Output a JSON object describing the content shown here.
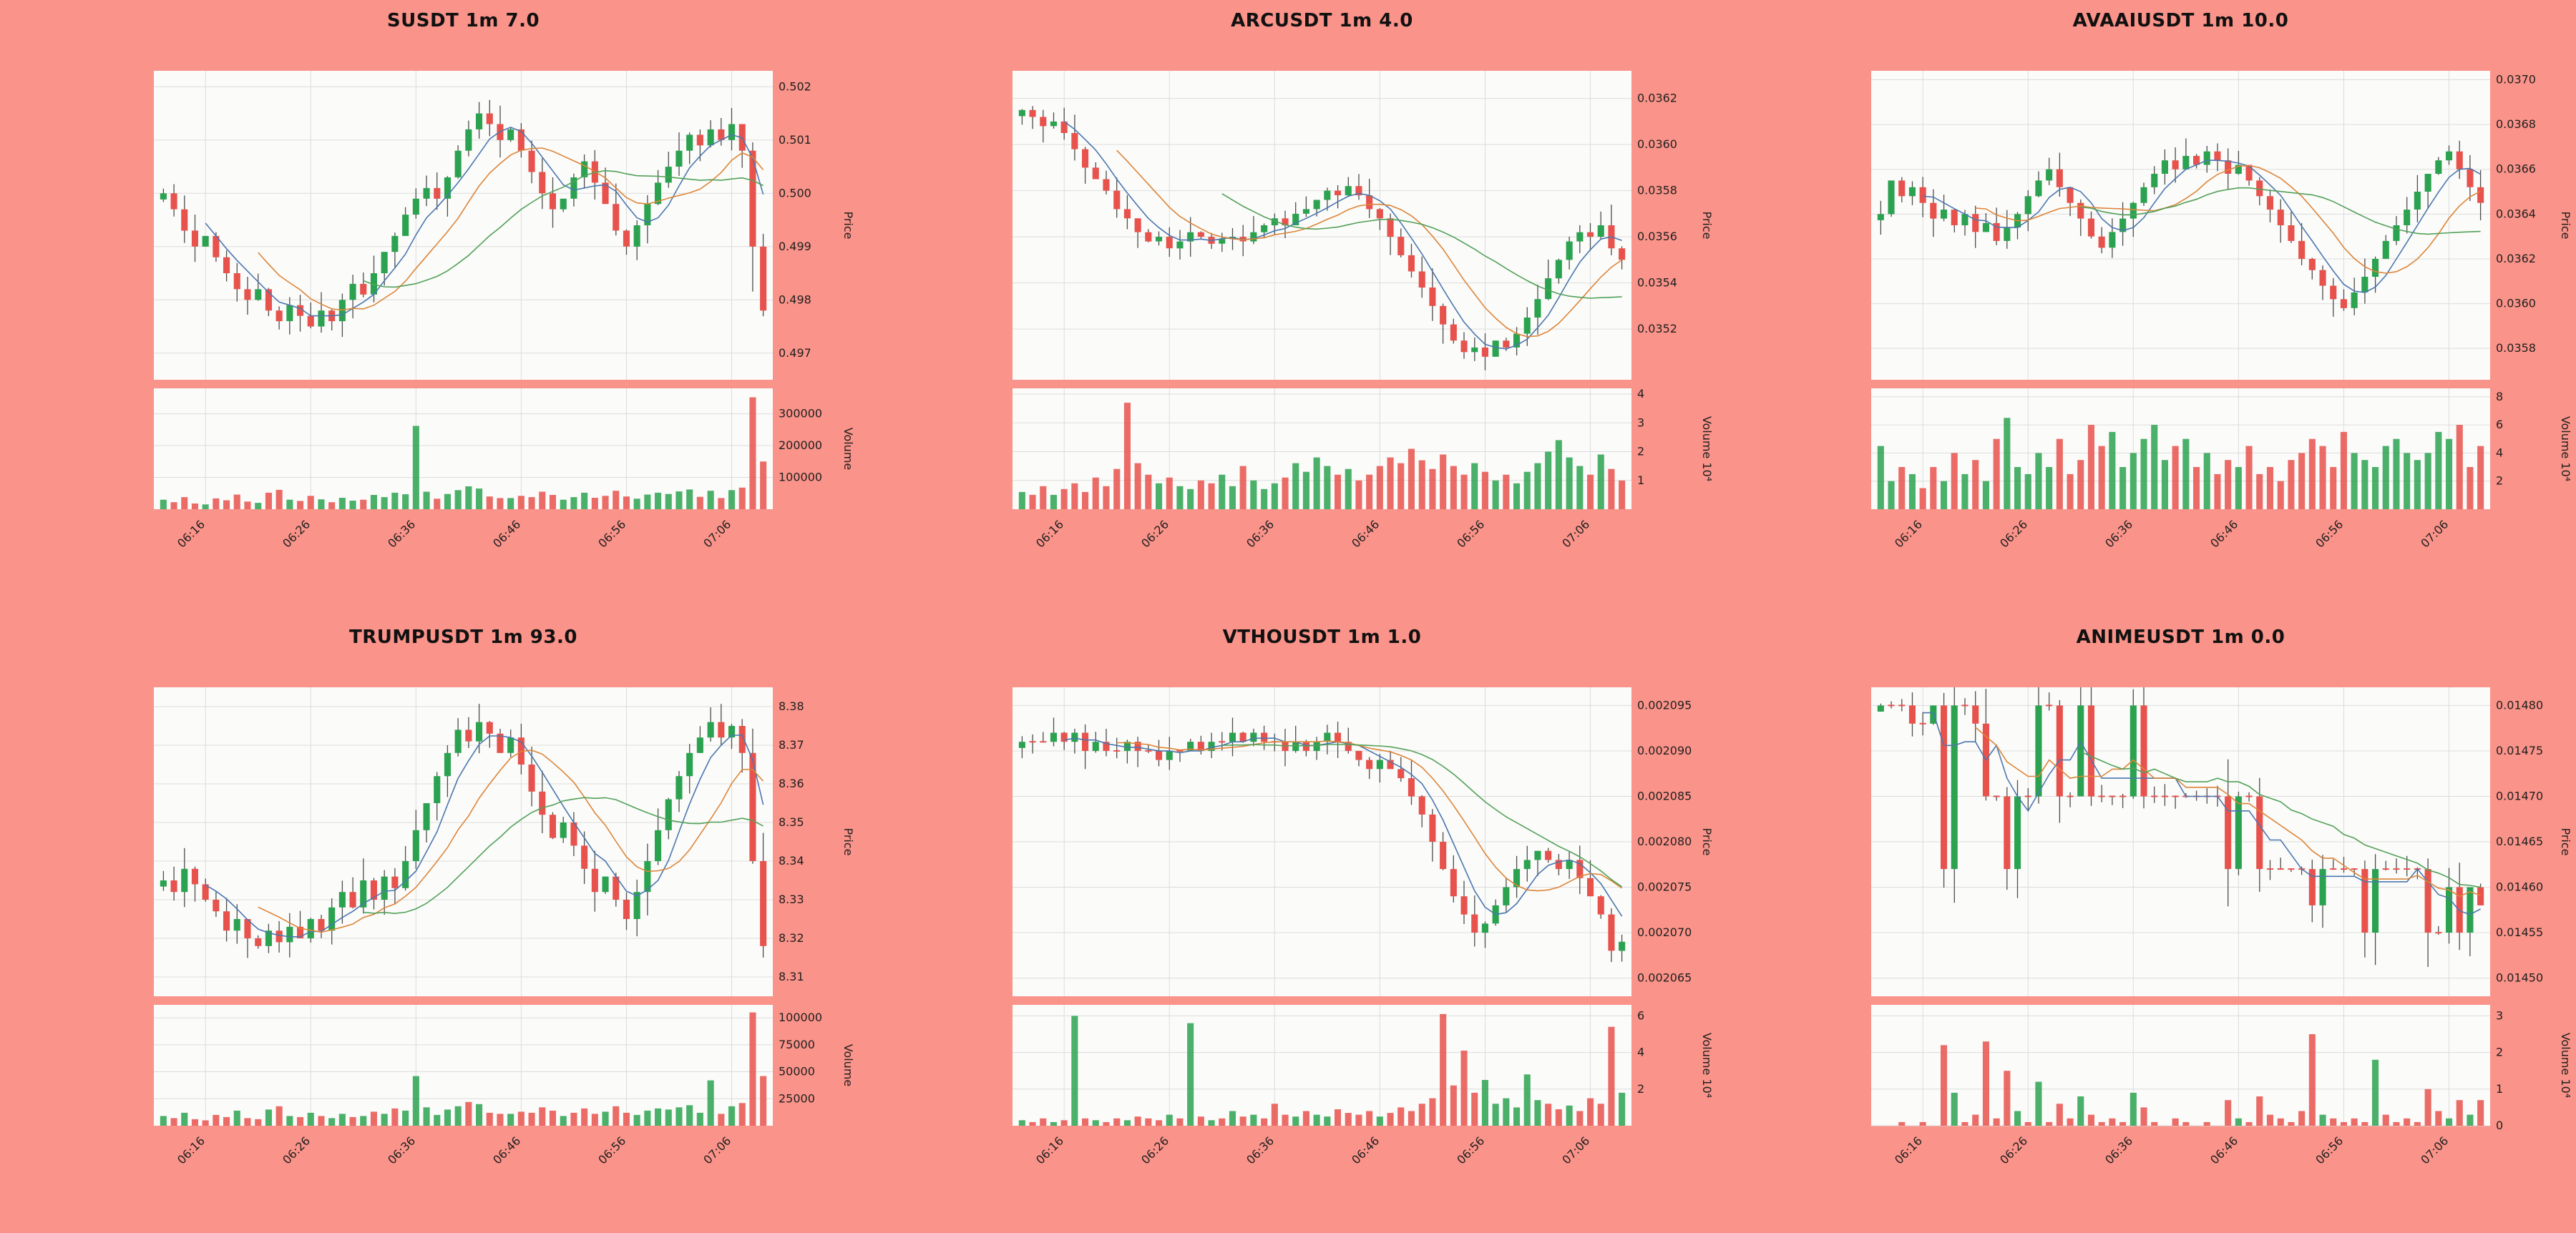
{
  "page": {
    "background_color": "#fa9389",
    "grid": {
      "rows": 2,
      "cols": 3
    }
  },
  "style": {
    "up_color": "#2ba24f",
    "down_color": "#e8524c",
    "wick_color": "#4d4d4d",
    "ma_colors": [
      "#4b77ae",
      "#dd8538",
      "#53a158"
    ],
    "ma_windows": [
      5,
      10,
      20
    ],
    "axes_bg": "#fbfbfa",
    "grid_color": "#dcdcdc",
    "text_color": "#1f1f1f"
  },
  "chart_data": [
    {
      "type": "candlestick+volume",
      "title": "SUSDT 1m 7.0",
      "symbol": "SUSDT",
      "interval": "1m",
      "score": "7.0",
      "price_axis_label": "Price",
      "volume_axis_label": "Volume",
      "x_tick_labels": [
        "06:16",
        "06:26",
        "06:36",
        "06:46",
        "06:56",
        "07:06"
      ],
      "x_tick_indices": [
        4,
        14,
        24,
        34,
        44,
        54
      ],
      "price_ticks": {
        "values": [
          0.497,
          0.498,
          0.499,
          0.5,
          0.501,
          0.502
        ],
        "labels": [
          "0.497",
          "0.498",
          "0.499",
          "0.500",
          "0.501",
          "0.502"
        ]
      },
      "price_ylim": [
        0.4965,
        0.5023
      ],
      "volume_ticks": {
        "values": [
          100000,
          200000,
          300000
        ],
        "labels": [
          "100000",
          "200000",
          "300000"
        ]
      },
      "volume_ylim": [
        0,
        380000
      ],
      "closes": [
        0.5,
        0.4997,
        0.4993,
        0.499,
        0.4992,
        0.4988,
        0.4985,
        0.4982,
        0.498,
        0.4982,
        0.4978,
        0.4976,
        0.4979,
        0.4977,
        0.4975,
        0.4978,
        0.4976,
        0.498,
        0.4983,
        0.4981,
        0.4985,
        0.4989,
        0.4992,
        0.4996,
        0.4999,
        0.5001,
        0.4999,
        0.5003,
        0.5008,
        0.5012,
        0.5015,
        0.5013,
        0.501,
        0.5012,
        0.5008,
        0.5004,
        0.5,
        0.4997,
        0.4999,
        0.5003,
        0.5006,
        0.5002,
        0.4998,
        0.4993,
        0.499,
        0.4994,
        0.4998,
        0.5002,
        0.5005,
        0.5008,
        0.5011,
        0.5009,
        0.5012,
        0.501,
        0.5013,
        0.5008,
        0.499,
        0.4978
      ],
      "volumes": [
        30000,
        22000,
        38000,
        18000,
        15000,
        34000,
        28000,
        46000,
        24000,
        20000,
        52000,
        61000,
        30000,
        26000,
        42000,
        31000,
        22000,
        36000,
        27000,
        30000,
        45000,
        38000,
        52000,
        47000,
        262000,
        55000,
        33000,
        48000,
        60000,
        72000,
        65000,
        40000,
        35000,
        35000,
        42000,
        38000,
        55000,
        45000,
        30000,
        38000,
        52000,
        36000,
        42000,
        58000,
        40000,
        33000,
        46000,
        52000,
        48000,
        56000,
        62000,
        39000,
        58000,
        35000,
        60000,
        68000,
        352000,
        150000
      ]
    },
    {
      "type": "candlestick+volume",
      "title": "ARCUSDT 1m 4.0",
      "symbol": "ARCUSDT",
      "interval": "1m",
      "score": "4.0",
      "price_axis_label": "Price",
      "volume_axis_label": "Volume 10⁴",
      "x_tick_labels": [
        "06:16",
        "06:26",
        "06:36",
        "06:46",
        "06:56",
        "07:06"
      ],
      "x_tick_indices": [
        4,
        14,
        24,
        34,
        44,
        54
      ],
      "price_ticks": {
        "values": [
          0.0352,
          0.0354,
          0.0356,
          0.0358,
          0.036,
          0.0362
        ],
        "labels": [
          "0.0352",
          "0.0354",
          "0.0356",
          "0.0358",
          "0.0360",
          "0.0362"
        ]
      },
      "price_ylim": [
        0.03498,
        0.03632
      ],
      "volume_ticks": {
        "values": [
          10000,
          20000,
          30000,
          40000
        ],
        "labels": [
          "1",
          "2",
          "3",
          "4"
        ]
      },
      "volume_ylim": [
        0,
        42000
      ],
      "closes": [
        0.03615,
        0.03612,
        0.03608,
        0.0361,
        0.03605,
        0.03598,
        0.0359,
        0.03585,
        0.0358,
        0.03572,
        0.03568,
        0.03562,
        0.03558,
        0.0356,
        0.03555,
        0.03558,
        0.03562,
        0.0356,
        0.03557,
        0.03559,
        0.0356,
        0.03558,
        0.03562,
        0.03565,
        0.03568,
        0.03565,
        0.0357,
        0.03572,
        0.03576,
        0.0358,
        0.03578,
        0.03582,
        0.03578,
        0.03572,
        0.03568,
        0.0356,
        0.03552,
        0.03545,
        0.03538,
        0.0353,
        0.03522,
        0.03515,
        0.0351,
        0.03512,
        0.03508,
        0.03515,
        0.03512,
        0.03518,
        0.03525,
        0.03533,
        0.03542,
        0.0355,
        0.03558,
        0.03562,
        0.0356,
        0.03565,
        0.03555,
        0.0355
      ],
      "volumes": [
        6000,
        5000,
        8000,
        5000,
        7000,
        9000,
        6000,
        11000,
        8000,
        14000,
        37000,
        16000,
        12000,
        9000,
        11000,
        8000,
        7000,
        10000,
        9000,
        12000,
        8000,
        15000,
        10000,
        7000,
        9000,
        11000,
        16000,
        13000,
        18000,
        15000,
        12000,
        14000,
        10000,
        12000,
        15000,
        18000,
        16000,
        21000,
        17000,
        14000,
        19000,
        15000,
        12000,
        16000,
        13000,
        10000,
        12000,
        9000,
        13000,
        16000,
        20000,
        24000,
        18000,
        15000,
        12000,
        19000,
        14000,
        10000
      ]
    },
    {
      "type": "candlestick+volume",
      "title": "AVAAIUSDT 1m 10.0",
      "symbol": "AVAAIUSDT",
      "interval": "1m",
      "score": "10.0",
      "price_axis_label": "Price",
      "volume_axis_label": "Volume 10⁴",
      "x_tick_labels": [
        "06:16",
        "06:26",
        "06:36",
        "06:46",
        "06:56",
        "07:06"
      ],
      "x_tick_indices": [
        4,
        14,
        24,
        34,
        44,
        54
      ],
      "price_ticks": {
        "values": [
          0.0358,
          0.036,
          0.0362,
          0.0364,
          0.0366,
          0.0368,
          0.037
        ],
        "labels": [
          "0.0358",
          "0.0360",
          "0.0362",
          "0.0364",
          "0.0366",
          "0.0368",
          "0.0370"
        ]
      },
      "price_ylim": [
        0.03566,
        0.03704
      ],
      "volume_ticks": {
        "values": [
          20000,
          40000,
          60000,
          80000
        ],
        "labels": [
          "2",
          "4",
          "6",
          "8"
        ]
      },
      "volume_ylim": [
        0,
        86000
      ],
      "closes": [
        0.0364,
        0.03655,
        0.03648,
        0.03652,
        0.03645,
        0.03638,
        0.03642,
        0.03635,
        0.0364,
        0.03632,
        0.03636,
        0.03628,
        0.03634,
        0.0364,
        0.03648,
        0.03655,
        0.0366,
        0.03652,
        0.03645,
        0.03638,
        0.0363,
        0.03625,
        0.03632,
        0.03638,
        0.03645,
        0.03652,
        0.03658,
        0.03664,
        0.0366,
        0.03666,
        0.03662,
        0.03668,
        0.03664,
        0.03658,
        0.03662,
        0.03655,
        0.03648,
        0.03642,
        0.03635,
        0.03628,
        0.0362,
        0.03615,
        0.03608,
        0.03602,
        0.03598,
        0.03605,
        0.03612,
        0.0362,
        0.03628,
        0.03635,
        0.03642,
        0.0365,
        0.03658,
        0.03664,
        0.03668,
        0.0366,
        0.03652,
        0.03645
      ],
      "volumes": [
        45000,
        20000,
        30000,
        25000,
        15000,
        30000,
        20000,
        40000,
        25000,
        35000,
        20000,
        50000,
        65000,
        30000,
        25000,
        40000,
        30000,
        50000,
        25000,
        35000,
        60000,
        45000,
        55000,
        30000,
        40000,
        50000,
        60000,
        35000,
        45000,
        50000,
        30000,
        40000,
        25000,
        35000,
        30000,
        45000,
        25000,
        30000,
        20000,
        35000,
        40000,
        50000,
        45000,
        30000,
        55000,
        40000,
        35000,
        30000,
        45000,
        50000,
        40000,
        35000,
        40000,
        55000,
        50000,
        60000,
        30000,
        45000
      ]
    },
    {
      "type": "candlestick+volume",
      "title": "TRUMPUSDT 1m 93.0",
      "symbol": "TRUMPUSDT",
      "interval": "1m",
      "score": "93.0",
      "price_axis_label": "Price",
      "volume_axis_label": "Volume",
      "x_tick_labels": [
        "06:16",
        "06:26",
        "06:36",
        "06:46",
        "06:56",
        "07:06"
      ],
      "x_tick_indices": [
        4,
        14,
        24,
        34,
        44,
        54
      ],
      "price_ticks": {
        "values": [
          8.31,
          8.32,
          8.33,
          8.34,
          8.35,
          8.36,
          8.37,
          8.38
        ],
        "labels": [
          "8.31",
          "8.32",
          "8.33",
          "8.34",
          "8.35",
          "8.36",
          "8.37",
          "8.38"
        ]
      },
      "price_ylim": [
        8.305,
        8.385
      ],
      "volume_ticks": {
        "values": [
          25000,
          50000,
          75000,
          100000
        ],
        "labels": [
          "25000",
          "50000",
          "75000",
          "100000"
        ]
      },
      "volume_ylim": [
        0,
        112000
      ],
      "closes": [
        8.335,
        8.332,
        8.338,
        8.334,
        8.33,
        8.327,
        8.322,
        8.325,
        8.32,
        8.318,
        8.322,
        8.319,
        8.323,
        8.32,
        8.325,
        8.322,
        8.328,
        8.332,
        8.328,
        8.335,
        8.33,
        8.336,
        8.333,
        8.34,
        8.348,
        8.355,
        8.362,
        8.368,
        8.374,
        8.371,
        8.376,
        8.373,
        8.368,
        8.372,
        8.365,
        8.358,
        8.352,
        8.346,
        8.35,
        8.344,
        8.338,
        8.332,
        8.336,
        8.33,
        8.325,
        8.332,
        8.34,
        8.348,
        8.356,
        8.362,
        8.368,
        8.372,
        8.376,
        8.372,
        8.375,
        8.368,
        8.34,
        8.318
      ],
      "volumes": [
        9000,
        7000,
        12000,
        6000,
        5000,
        10000,
        8000,
        14000,
        7000,
        6000,
        15000,
        18000,
        9000,
        8000,
        12000,
        9000,
        7000,
        11000,
        8000,
        9000,
        13000,
        11000,
        16000,
        14000,
        46000,
        17000,
        10000,
        15000,
        18000,
        22000,
        20000,
        12000,
        11000,
        11000,
        13000,
        12000,
        17000,
        14000,
        9000,
        12000,
        16000,
        11000,
        13000,
        18000,
        12000,
        10000,
        14000,
        16000,
        15000,
        17000,
        19000,
        12000,
        42000,
        11000,
        18000,
        21000,
        105000,
        46000
      ]
    },
    {
      "type": "candlestick+volume",
      "title": "VTHOUSDT 1m 1.0",
      "symbol": "VTHOUSDT",
      "interval": "1m",
      "score": "1.0",
      "price_axis_label": "Price",
      "volume_axis_label": "Volume 10⁴",
      "x_tick_labels": [
        "06:16",
        "06:26",
        "06:36",
        "06:46",
        "06:56",
        "07:06"
      ],
      "x_tick_indices": [
        4,
        14,
        24,
        34,
        44,
        54
      ],
      "price_ticks": {
        "values": [
          0.002065,
          0.00207,
          0.002075,
          0.00208,
          0.002085,
          0.00209,
          0.002095
        ],
        "labels": [
          "0.002065",
          "0.002070",
          "0.002075",
          "0.002080",
          "0.002085",
          "0.002090",
          "0.002095"
        ]
      },
      "price_ylim": [
        0.002063,
        0.002097
      ],
      "volume_ticks": {
        "values": [
          20000,
          40000,
          60000
        ],
        "labels": [
          "2",
          "4",
          "6"
        ]
      },
      "volume_ylim": [
        0,
        66000
      ],
      "closes": [
        0.002091,
        0.002091,
        0.002091,
        0.002092,
        0.002091,
        0.002092,
        0.00209,
        0.002091,
        0.00209,
        0.00209,
        0.002091,
        0.00209,
        0.00209,
        0.002089,
        0.00209,
        0.00209,
        0.002091,
        0.00209,
        0.002091,
        0.002091,
        0.002092,
        0.002091,
        0.002092,
        0.002091,
        0.002091,
        0.00209,
        0.002091,
        0.00209,
        0.002091,
        0.002092,
        0.002091,
        0.00209,
        0.002089,
        0.002088,
        0.002089,
        0.002088,
        0.002087,
        0.002085,
        0.002083,
        0.00208,
        0.002077,
        0.002074,
        0.002072,
        0.00207,
        0.002071,
        0.002073,
        0.002075,
        0.002077,
        0.002078,
        0.002079,
        0.002078,
        0.002077,
        0.002078,
        0.002076,
        0.002074,
        0.002072,
        0.002068,
        0.002069
      ],
      "volumes": [
        3000,
        2000,
        4000,
        2000,
        3000,
        60000,
        4000,
        3000,
        2000,
        4000,
        3000,
        5000,
        4000,
        3000,
        6000,
        4000,
        56000,
        5000,
        3000,
        4000,
        8000,
        5000,
        6000,
        4000,
        12000,
        6000,
        5000,
        8000,
        6000,
        5000,
        9000,
        7000,
        6000,
        8000,
        5000,
        7000,
        10000,
        8000,
        12000,
        15000,
        61000,
        22000,
        41000,
        18000,
        25000,
        12000,
        15000,
        10000,
        28000,
        14000,
        12000,
        9000,
        11000,
        8000,
        15000,
        12000,
        54000,
        18000
      ]
    },
    {
      "type": "candlestick+volume",
      "title": "ANIMEUSDT 1m 0.0",
      "symbol": "ANIMEUSDT",
      "interval": "1m",
      "score": "0.0",
      "price_axis_label": "Price",
      "volume_axis_label": "Volume 10⁴",
      "x_tick_labels": [
        "06:16",
        "06:26",
        "06:36",
        "06:46",
        "06:56",
        "07:06"
      ],
      "x_tick_indices": [
        4,
        14,
        24,
        34,
        44,
        54
      ],
      "price_ticks": {
        "values": [
          0.0145,
          0.01455,
          0.0146,
          0.01465,
          0.0147,
          0.01475,
          0.0148
        ],
        "labels": [
          "0.01450",
          "0.01455",
          "0.01460",
          "0.01465",
          "0.01470",
          "0.01475",
          "0.01480"
        ]
      },
      "price_ylim": [
        0.01448,
        0.01482
      ],
      "volume_ticks": {
        "values": [
          0,
          10000,
          20000,
          30000
        ],
        "labels": [
          "0",
          "1",
          "2",
          "3"
        ]
      },
      "volume_ylim": [
        0,
        33000
      ],
      "closes": [
        0.0148,
        0.0148,
        0.0148,
        0.01478,
        0.01478,
        0.0148,
        0.01462,
        0.0148,
        0.0148,
        0.01478,
        0.0147,
        0.0147,
        0.01462,
        0.0147,
        0.0147,
        0.0148,
        0.0148,
        0.0147,
        0.0147,
        0.0148,
        0.0147,
        0.0147,
        0.0147,
        0.0147,
        0.0148,
        0.0147,
        0.0147,
        0.0147,
        0.0147,
        0.0147,
        0.0147,
        0.0147,
        0.0147,
        0.01462,
        0.0147,
        0.0147,
        0.01462,
        0.01462,
        0.01462,
        0.01462,
        0.01462,
        0.01458,
        0.01462,
        0.01462,
        0.01462,
        0.01462,
        0.01455,
        0.01462,
        0.01462,
        0.01462,
        0.01462,
        0.01462,
        0.01455,
        0.01455,
        0.0146,
        0.01455,
        0.0146,
        0.01458
      ],
      "volumes": [
        0,
        0,
        1000,
        0,
        1000,
        0,
        22000,
        9000,
        1000,
        3000,
        23000,
        2000,
        15000,
        4000,
        1000,
        12000,
        1000,
        6000,
        2000,
        8000,
        3000,
        1000,
        2000,
        1000,
        9000,
        5000,
        1000,
        0,
        2000,
        1000,
        0,
        1000,
        0,
        7000,
        2000,
        1000,
        8000,
        3000,
        2000,
        1000,
        4000,
        25000,
        3000,
        2000,
        1000,
        2000,
        1000,
        18000,
        3000,
        1000,
        2000,
        1000,
        10000,
        4000,
        2000,
        7000,
        3000,
        7000
      ]
    }
  ]
}
